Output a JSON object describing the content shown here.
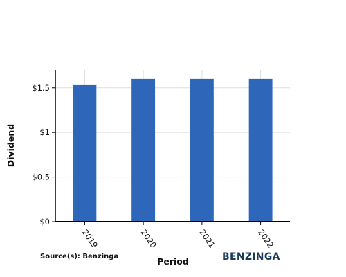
{
  "chart_data": {
    "type": "bar",
    "categories": [
      "2019",
      "2020",
      "2021",
      "2022"
    ],
    "series": [
      {
        "values": [
          1.53,
          1.6,
          1.6,
          1.6
        ]
      }
    ],
    "title": "",
    "xlabel": "Period",
    "ylabel": "Dividend",
    "ylim": [
      0,
      1.7
    ],
    "yticks": [
      0,
      0.5,
      1,
      1.5
    ],
    "ytick_labels": [
      "$0",
      "$0.5",
      "$1",
      "$1.5"
    ],
    "grid": true,
    "bar_color": "#2e67b9",
    "grid_color": "#dddddd",
    "axis_color": "#000000"
  },
  "footer": {
    "source": "Source(s): Benzinga",
    "logo": "BENZINGA"
  }
}
